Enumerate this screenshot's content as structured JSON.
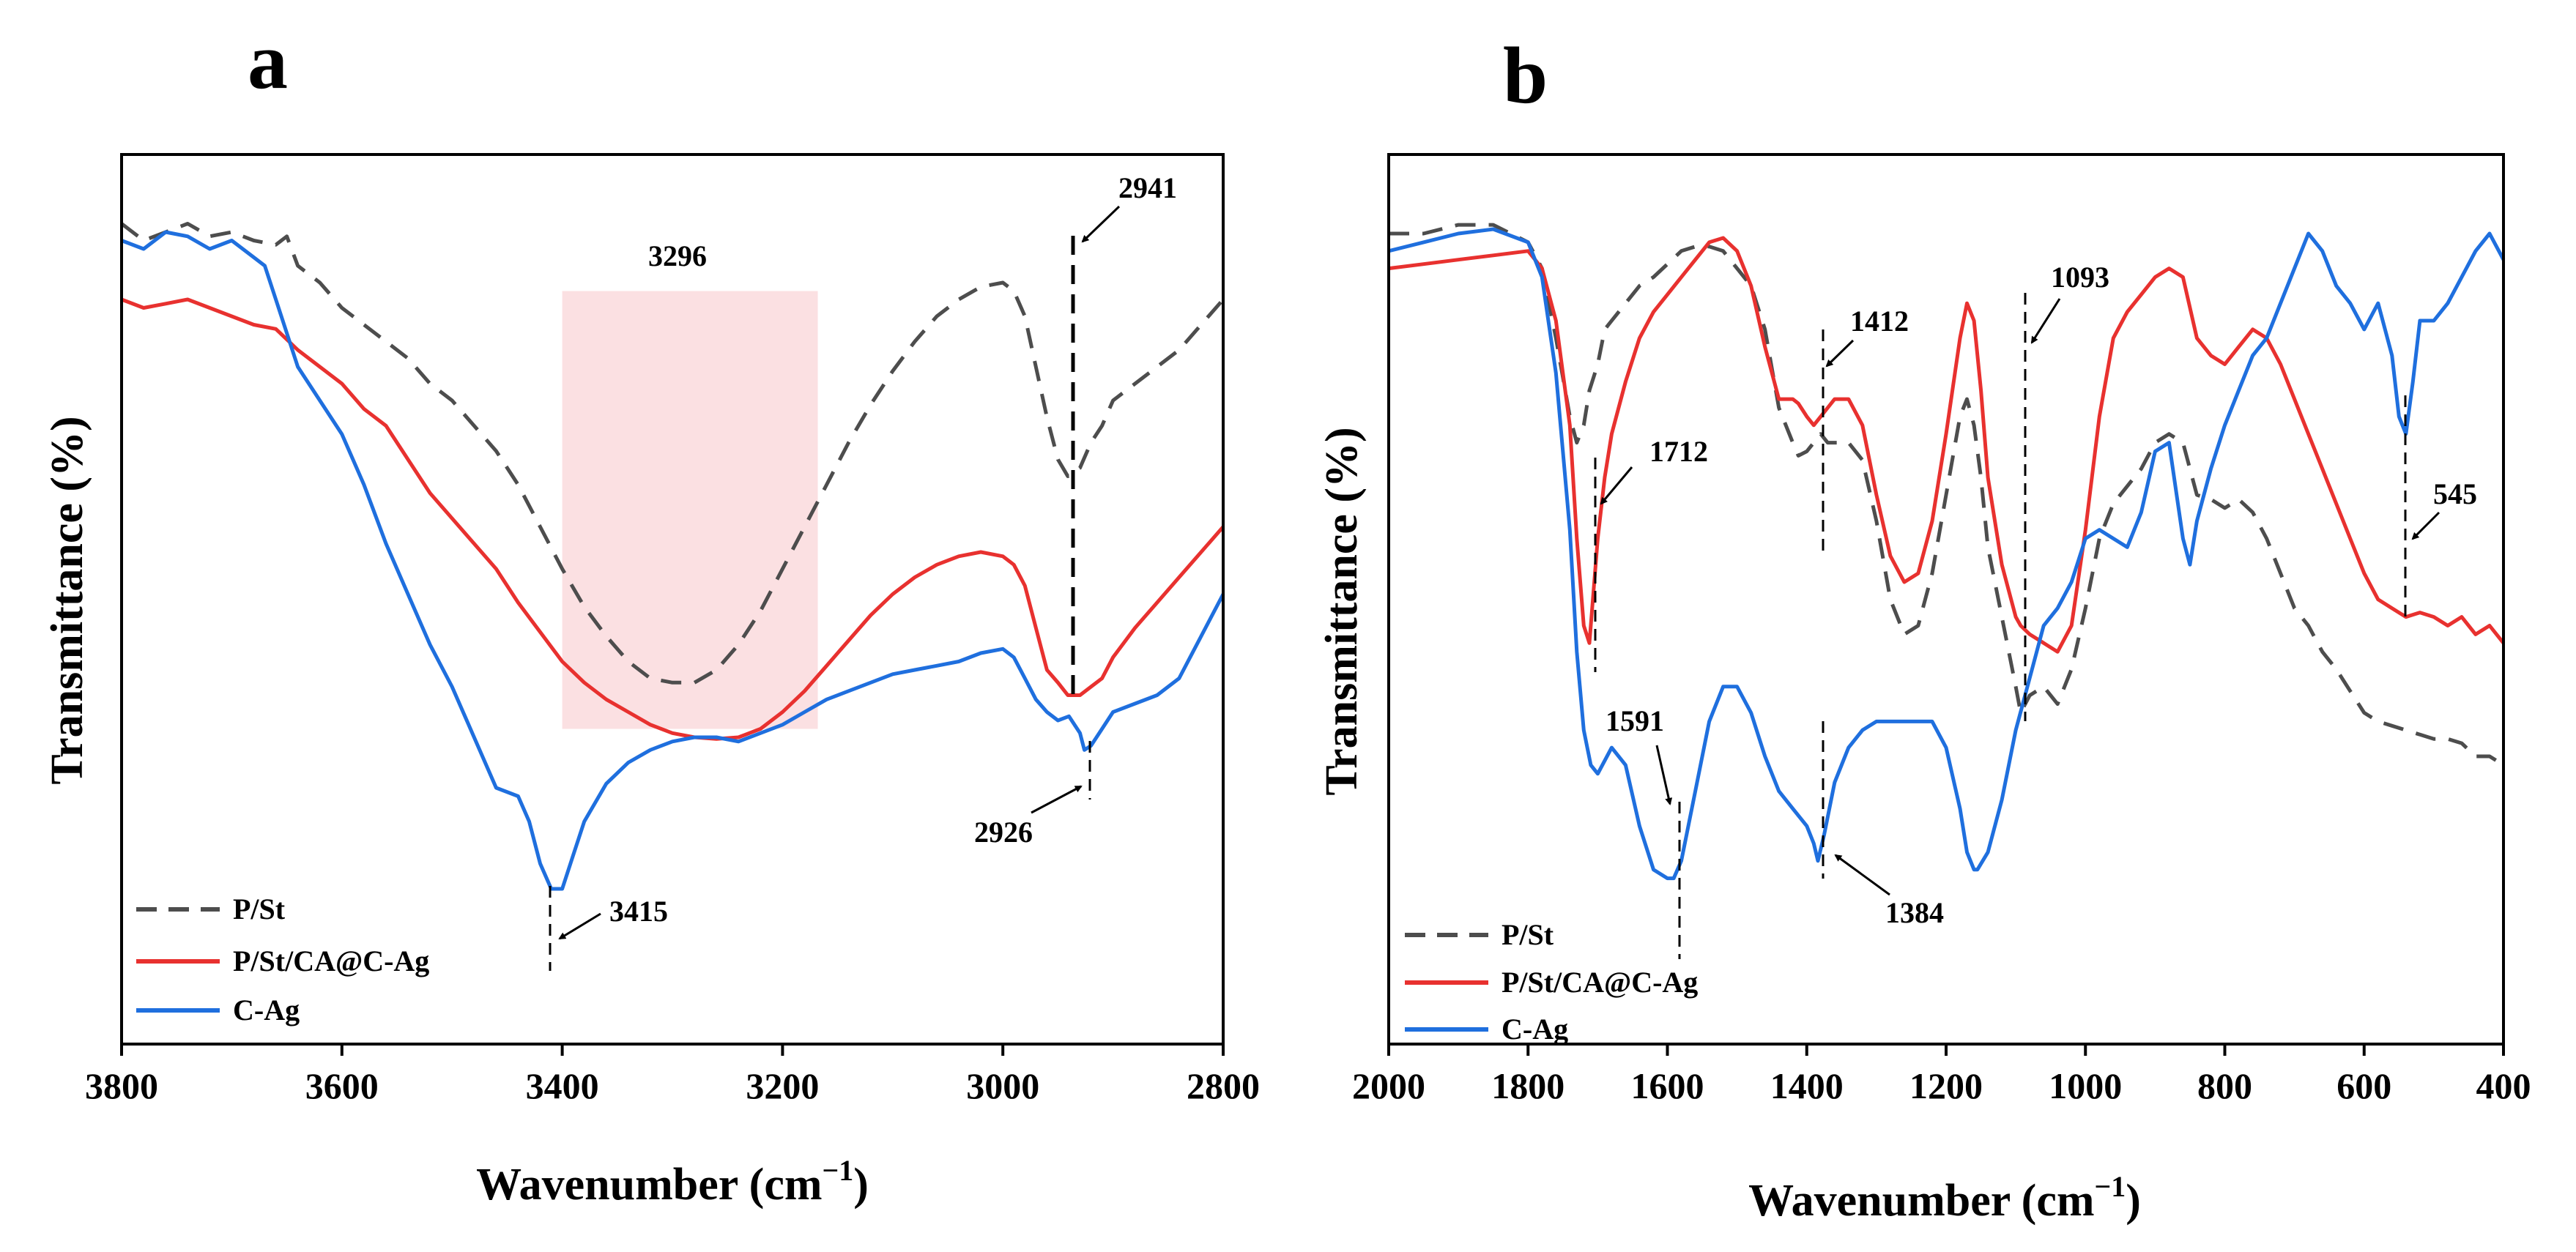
{
  "chart_data": [
    {
      "panel_label": "a",
      "type": "line",
      "title": "",
      "xlabel_main": "Wavenumber (cm",
      "xlabel_sup": "−1",
      "xlabel_close": ")",
      "ylabel": "Transmittance (%)",
      "xlim": [
        3800,
        2800
      ],
      "ylim": [
        0,
        100
      ],
      "ticks": [
        {
          "value": 3800,
          "label": "3800"
        },
        {
          "value": 3600,
          "label": "3600"
        },
        {
          "value": 3400,
          "label": "3400"
        },
        {
          "value": 3200,
          "label": "3200"
        },
        {
          "value": 3000,
          "label": "3000"
        },
        {
          "value": 2800,
          "label": "2800"
        }
      ],
      "highlight": {
        "x_from": 3400,
        "x_to": 3168,
        "y_from": 31,
        "y_to": 83,
        "color": "#fadadd",
        "label": "3296",
        "label_x": 3296,
        "label_y": 87
      },
      "series": [
        {
          "name": "P/St",
          "color": "#4d4d4d",
          "dash": true,
          "x": [
            3800,
            3780,
            3760,
            3740,
            3720,
            3700,
            3680,
            3660,
            3650,
            3640,
            3620,
            3600,
            3580,
            3560,
            3540,
            3520,
            3500,
            3480,
            3460,
            3440,
            3420,
            3400,
            3380,
            3360,
            3340,
            3320,
            3300,
            3280,
            3260,
            3240,
            3220,
            3200,
            3180,
            3160,
            3140,
            3120,
            3100,
            3080,
            3060,
            3040,
            3020,
            3000,
            2990,
            2980,
            2970,
            2960,
            2950,
            2941,
            2930,
            2920,
            2910,
            2900,
            2880,
            2860,
            2840,
            2820,
            2800
          ],
          "y": [
            91,
            89,
            90,
            91,
            89.5,
            90,
            89,
            88.5,
            89.5,
            86,
            84,
            81,
            79,
            77,
            75,
            72,
            70,
            67,
            64,
            60,
            55,
            50,
            45.5,
            42,
            39,
            37,
            36.5,
            36.5,
            38,
            41,
            45,
            50,
            55,
            60,
            65,
            69.5,
            73.5,
            77,
            80,
            82,
            83.5,
            84,
            83,
            80,
            74,
            68,
            63,
            61,
            62,
            65,
            67,
            70,
            72,
            74,
            76,
            79,
            82
          ]
        },
        {
          "name": "P/St/CA@C-Ag",
          "color": "#e8312f",
          "dash": false,
          "x": [
            3800,
            3780,
            3760,
            3740,
            3720,
            3700,
            3680,
            3660,
            3640,
            3620,
            3600,
            3580,
            3560,
            3540,
            3520,
            3500,
            3480,
            3460,
            3440,
            3420,
            3400,
            3380,
            3360,
            3340,
            3320,
            3300,
            3280,
            3260,
            3240,
            3220,
            3200,
            3180,
            3160,
            3140,
            3120,
            3100,
            3080,
            3060,
            3040,
            3020,
            3000,
            2990,
            2980,
            2970,
            2960,
            2950,
            2941,
            2930,
            2920,
            2910,
            2900,
            2880,
            2860,
            2840,
            2820,
            2800
          ],
          "y": [
            82,
            81,
            81.5,
            82,
            81,
            80,
            79,
            78.5,
            76,
            74,
            72,
            69,
            67,
            63,
            59,
            56,
            53,
            50,
            46,
            42.5,
            39,
            36.5,
            34.5,
            33,
            31.5,
            30.5,
            30,
            29.8,
            30,
            31,
            33,
            35.5,
            38.5,
            41.5,
            44.5,
            47,
            49,
            50.5,
            51.5,
            52,
            51.5,
            50.5,
            48,
            43,
            38,
            36.5,
            35,
            35,
            36,
            37,
            39.5,
            43,
            46,
            49,
            52,
            55
          ]
        },
        {
          "name": "C-Ag",
          "color": "#1f6fde",
          "dash": false,
          "x": [
            3800,
            3780,
            3760,
            3740,
            3720,
            3700,
            3680,
            3670,
            3660,
            3650,
            3640,
            3620,
            3600,
            3580,
            3560,
            3540,
            3520,
            3500,
            3480,
            3460,
            3440,
            3430,
            3420,
            3410,
            3400,
            3390,
            3380,
            3360,
            3340,
            3320,
            3300,
            3280,
            3260,
            3240,
            3220,
            3200,
            3180,
            3160,
            3140,
            3120,
            3100,
            3080,
            3060,
            3040,
            3020,
            3000,
            2990,
            2980,
            2970,
            2960,
            2950,
            2940,
            2930,
            2926,
            2920,
            2910,
            2900,
            2880,
            2860,
            2840,
            2820,
            2800
          ],
          "y": [
            89,
            88,
            90,
            89.5,
            88,
            89,
            87,
            86,
            82,
            78,
            74,
            70,
            66,
            60,
            53,
            47,
            41,
            36,
            30,
            24,
            23,
            20,
            15,
            12,
            12,
            16,
            20,
            24.5,
            27,
            28.5,
            29.5,
            30,
            30,
            29.5,
            30.5,
            31.5,
            33,
            34.5,
            35.5,
            36.5,
            37.5,
            38,
            38.5,
            39,
            40,
            40.5,
            39.5,
            37,
            34.5,
            33,
            32,
            32.5,
            30.5,
            28.5,
            29,
            31,
            33,
            34,
            35,
            37,
            42,
            47
          ]
        }
      ],
      "annotations": [
        {
          "text": "2941",
          "x": 2941
        },
        {
          "text": "2926",
          "x": 2926
        },
        {
          "text": "3415",
          "x": 3415
        }
      ],
      "legend": [
        {
          "label": "P/St",
          "color": "#4d4d4d",
          "dash": true
        },
        {
          "label": "P/St/CA@C-Ag",
          "color": "#e8312f",
          "dash": false
        },
        {
          "label": "C-Ag",
          "color": "#1f6fde",
          "dash": false
        }
      ],
      "legend_position": "bottom-left"
    },
    {
      "panel_label": "b",
      "type": "line",
      "title": "",
      "xlabel_main": "Wavenumber (cm",
      "xlabel_sup": "−1",
      "xlabel_close": ")",
      "ylabel": "Transmittance (%)",
      "xlim": [
        2000,
        400
      ],
      "ylim": [
        0,
        100
      ],
      "ticks": [
        {
          "value": 2000,
          "label": "2000"
        },
        {
          "value": 1800,
          "label": "1800"
        },
        {
          "value": 1600,
          "label": "1600"
        },
        {
          "value": 1400,
          "label": "1400"
        },
        {
          "value": 1200,
          "label": "1200"
        },
        {
          "value": 1000,
          "label": "1000"
        },
        {
          "value": 800,
          "label": "800"
        },
        {
          "value": 600,
          "label": "600"
        },
        {
          "value": 400,
          "label": "400"
        }
      ],
      "series": [
        {
          "name": "P/St",
          "color": "#4d4d4d",
          "dash": true,
          "x": [
            2000,
            1950,
            1900,
            1850,
            1800,
            1780,
            1760,
            1740,
            1730,
            1720,
            1712,
            1700,
            1690,
            1680,
            1660,
            1640,
            1620,
            1600,
            1580,
            1560,
            1540,
            1520,
            1500,
            1480,
            1460,
            1440,
            1420,
            1412,
            1400,
            1390,
            1380,
            1370,
            1360,
            1340,
            1320,
            1300,
            1280,
            1260,
            1240,
            1220,
            1200,
            1180,
            1170,
            1160,
            1150,
            1140,
            1120,
            1100,
            1093,
            1080,
            1060,
            1040,
            1020,
            1000,
            980,
            960,
            940,
            920,
            900,
            880,
            860,
            840,
            820,
            800,
            780,
            760,
            740,
            720,
            700,
            680,
            660,
            640,
            620,
            600,
            580,
            560,
            540,
            520,
            500,
            480,
            460,
            440,
            420,
            400
          ],
          "y": [
            90,
            90,
            91,
            91,
            89,
            86,
            78,
            69,
            66,
            68,
            72,
            75,
            79,
            80,
            82,
            84,
            85,
            86.5,
            88,
            88.5,
            88.5,
            88,
            86,
            84,
            79,
            70,
            66,
            64.5,
            65,
            66,
            67,
            66,
            66,
            66,
            64,
            57,
            48,
            44,
            45,
            51,
            60,
            69,
            71,
            68,
            62,
            54,
            46,
            38,
            35,
            37,
            38,
            36,
            40,
            47,
            55,
            59,
            61,
            63,
            66,
            67,
            66,
            60,
            59.5,
            58.5,
            59.5,
            58,
            55,
            51,
            47,
            45,
            42,
            40,
            37.5,
            35,
            34,
            33.5,
            33,
            32.5,
            32,
            32,
            31.5,
            30,
            30,
            29
          ]
        },
        {
          "name": "P/St/CA@C-Ag",
          "color": "#e8312f",
          "dash": false,
          "x": [
            2000,
            1950,
            1900,
            1850,
            1800,
            1780,
            1760,
            1740,
            1730,
            1720,
            1712,
            1700,
            1690,
            1680,
            1660,
            1640,
            1620,
            1600,
            1580,
            1560,
            1540,
            1520,
            1500,
            1480,
            1460,
            1440,
            1420,
            1412,
            1400,
            1390,
            1380,
            1370,
            1360,
            1340,
            1320,
            1300,
            1280,
            1260,
            1240,
            1220,
            1200,
            1180,
            1170,
            1160,
            1150,
            1140,
            1120,
            1100,
            1093,
            1080,
            1060,
            1040,
            1020,
            1000,
            980,
            960,
            940,
            920,
            900,
            880,
            860,
            840,
            820,
            800,
            780,
            760,
            740,
            720,
            700,
            680,
            660,
            640,
            620,
            600,
            580,
            560,
            540,
            520,
            500,
            480,
            460,
            440,
            420,
            400
          ],
          "y": [
            86,
            86.5,
            87,
            87.5,
            88,
            86,
            80,
            68,
            55,
            45,
            43,
            55,
            62,
            67,
            73,
            78,
            81,
            83,
            85,
            87,
            89,
            89.5,
            88,
            84,
            77,
            71,
            71,
            70.5,
            69,
            68,
            69,
            70,
            71,
            71,
            68,
            60,
            53,
            50,
            51,
            57,
            67,
            78,
            82,
            80,
            72,
            62,
            52,
            46,
            45,
            44,
            43,
            42,
            45,
            56,
            69,
            78,
            81,
            83,
            85,
            86,
            85,
            78,
            76,
            75,
            77,
            79,
            78,
            75,
            71,
            67,
            63,
            59,
            55,
            51,
            48,
            47,
            46,
            46.5,
            46,
            45,
            46,
            44,
            45,
            43
          ]
        },
        {
          "name": "C-Ag",
          "color": "#1f6fde",
          "dash": false,
          "x": [
            2000,
            1950,
            1900,
            1850,
            1800,
            1780,
            1760,
            1740,
            1730,
            1720,
            1710,
            1700,
            1680,
            1660,
            1640,
            1620,
            1600,
            1591,
            1580,
            1560,
            1540,
            1520,
            1500,
            1480,
            1460,
            1440,
            1420,
            1400,
            1390,
            1384,
            1375,
            1360,
            1340,
            1320,
            1300,
            1280,
            1260,
            1240,
            1220,
            1200,
            1180,
            1170,
            1160,
            1155,
            1140,
            1120,
            1100,
            1080,
            1060,
            1040,
            1020,
            1000,
            980,
            960,
            940,
            920,
            900,
            880,
            860,
            850,
            840,
            820,
            800,
            780,
            760,
            740,
            720,
            700,
            680,
            660,
            640,
            620,
            600,
            580,
            560,
            550,
            540,
            530,
            520,
            500,
            480,
            460,
            440,
            420,
            400
          ],
          "y": [
            88,
            89,
            90,
            90.5,
            89,
            85,
            74,
            56,
            42,
            33,
            29,
            28,
            31,
            29,
            22,
            17,
            16,
            16,
            18,
            26,
            34,
            38,
            38,
            35,
            30,
            26,
            24,
            22,
            20,
            18,
            21,
            27,
            31,
            33,
            34,
            34,
            34,
            34,
            34,
            31,
            24,
            19,
            17,
            17,
            19,
            25,
            33,
            39,
            45,
            47,
            50,
            55,
            56,
            55,
            54,
            58,
            65,
            66,
            55,
            52,
            57,
            63,
            68,
            72,
            76,
            78,
            82,
            86,
            90,
            88,
            84,
            82,
            79,
            82,
            76,
            69,
            67,
            73,
            80,
            80,
            82,
            85,
            88,
            90,
            87
          ]
        }
      ],
      "annotations": [
        {
          "text": "1712",
          "x": 1712
        },
        {
          "text": "1591",
          "x": 1591
        },
        {
          "text": "1412",
          "x": 1412
        },
        {
          "text": "1384",
          "x": 1384
        },
        {
          "text": "1093",
          "x": 1093
        },
        {
          "text": "545",
          "x": 545
        }
      ],
      "legend": [
        {
          "label": "P/St",
          "color": "#4d4d4d",
          "dash": true
        },
        {
          "label": "P/St/CA@C-Ag",
          "color": "#e8312f",
          "dash": false
        },
        {
          "label": "C-Ag",
          "color": "#1f6fde",
          "dash": false
        }
      ],
      "legend_position": "bottom-left"
    }
  ]
}
